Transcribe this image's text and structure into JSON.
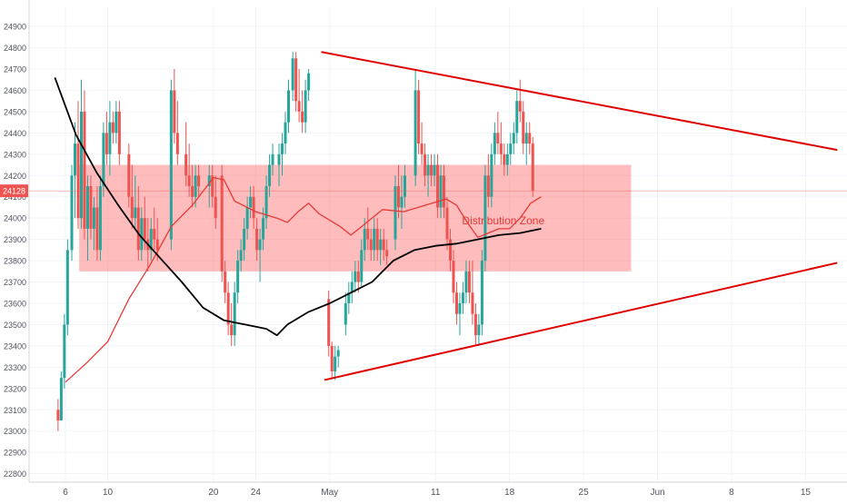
{
  "chart_data": {
    "type": "candlestick",
    "y_ticks": [
      22800,
      22900,
      23000,
      23100,
      23200,
      23300,
      23400,
      23500,
      23600,
      23700,
      23800,
      23900,
      24000,
      24100,
      24200,
      24300,
      24400,
      24500,
      24600,
      24700,
      24800,
      24900
    ],
    "ylim": [
      22760,
      24990
    ],
    "x_tick_labels": [
      {
        "label": "6",
        "day": 6
      },
      {
        "label": "10",
        "day": 10
      },
      {
        "label": "20",
        "day": 20
      },
      {
        "label": "24",
        "day": 24
      },
      {
        "label": "May",
        "day": 31
      },
      {
        "label": "11",
        "day": 41
      },
      {
        "label": "18",
        "day": 48
      },
      {
        "label": "25",
        "day": 55
      },
      {
        "label": "Jun",
        "day": 62
      },
      {
        "label": "8",
        "day": 69
      },
      {
        "label": "15",
        "day": 76
      }
    ],
    "last_price": {
      "label": "24128",
      "value": 24128,
      "color": "#ef5350"
    },
    "zone": {
      "label": "Distribution Zone",
      "low": 23750,
      "high": 24250,
      "day_start": 7.3,
      "day_end": 59.5,
      "color": "#ff6b6b"
    },
    "trendlines": [
      {
        "name": "upper",
        "from": [
          30.2,
          24780
        ],
        "to": [
          79,
          24320
        ],
        "color": "#e00000"
      },
      {
        "name": "lower",
        "from": [
          30.5,
          23240
        ],
        "to": [
          79,
          23790
        ],
        "color": "#e00000"
      }
    ],
    "moving_averages": [
      {
        "color": "#e53935",
        "points": [
          [
            6,
            23230
          ],
          [
            8,
            23320
          ],
          [
            10,
            23420
          ],
          [
            12,
            23620
          ],
          [
            14,
            23780
          ],
          [
            16,
            23960
          ],
          [
            18,
            24060
          ],
          [
            20,
            24190
          ],
          [
            21,
            24180
          ],
          [
            22,
            24080
          ],
          [
            24,
            24030
          ],
          [
            26,
            24000
          ],
          [
            27,
            23980
          ],
          [
            28,
            24030
          ],
          [
            29,
            24070
          ],
          [
            30,
            24020
          ],
          [
            32,
            23960
          ],
          [
            33,
            23920
          ],
          [
            34,
            23960
          ],
          [
            36,
            24040
          ],
          [
            38,
            24030
          ],
          [
            40,
            24060
          ],
          [
            42,
            24090
          ],
          [
            43,
            24060
          ],
          [
            44,
            23980
          ],
          [
            45,
            23910
          ],
          [
            46,
            23930
          ],
          [
            47,
            23950
          ],
          [
            48,
            23950
          ],
          [
            49,
            24000
          ],
          [
            50,
            24070
          ],
          [
            51,
            24100
          ]
        ]
      },
      {
        "color": "#000000",
        "points": [
          [
            5,
            24660
          ],
          [
            7,
            24390
          ],
          [
            9,
            24210
          ],
          [
            11,
            24060
          ],
          [
            13,
            23920
          ],
          [
            15,
            23810
          ],
          [
            17,
            23700
          ],
          [
            19,
            23580
          ],
          [
            21,
            23520
          ],
          [
            23,
            23500
          ],
          [
            25,
            23480
          ],
          [
            26,
            23450
          ],
          [
            27,
            23500
          ],
          [
            29,
            23560
          ],
          [
            31,
            23600
          ],
          [
            33,
            23650
          ],
          [
            35,
            23700
          ],
          [
            37,
            23800
          ],
          [
            39,
            23850
          ],
          [
            41,
            23870
          ],
          [
            43,
            23880
          ],
          [
            45,
            23900
          ],
          [
            47,
            23920
          ],
          [
            49,
            23930
          ],
          [
            51,
            23950
          ]
        ]
      }
    ],
    "candles": [
      [
        5.3,
        23100,
        23150,
        23000,
        23050
      ],
      [
        5.6,
        23050,
        23280,
        23050,
        23250
      ],
      [
        5.9,
        23250,
        23550,
        23200,
        23500
      ],
      [
        6.2,
        23500,
        23900,
        23450,
        23850
      ],
      [
        6.6,
        23850,
        24250,
        23800,
        24200
      ],
      [
        6.9,
        24200,
        24450,
        24000,
        24350
      ],
      [
        7.2,
        24350,
        24550,
        23950,
        24000
      ],
      [
        7.5,
        24000,
        24650,
        23950,
        24500
      ],
      [
        7.8,
        24500,
        24600,
        23900,
        23950
      ],
      [
        8.1,
        23950,
        24200,
        23800,
        24150
      ],
      [
        8.4,
        24150,
        24200,
        23900,
        23950
      ],
      [
        8.7,
        23950,
        24100,
        23850,
        24050
      ],
      [
        9.0,
        24050,
        24150,
        23800,
        23850
      ],
      [
        9.3,
        23850,
        24200,
        23800,
        24150
      ],
      [
        9.6,
        24150,
        24450,
        24100,
        24400
      ],
      [
        9.9,
        24400,
        24500,
        24250,
        24300
      ],
      [
        10.2,
        24300,
        24550,
        24200,
        24450
      ],
      [
        10.5,
        24450,
        24500,
        24350,
        24400
      ],
      [
        10.8,
        24400,
        24550,
        24350,
        24500
      ],
      [
        11.1,
        24500,
        24550,
        24250,
        24300
      ],
      [
        12.0,
        24300,
        24350,
        24050,
        24100
      ],
      [
        12.3,
        24100,
        24250,
        23950,
        24000
      ],
      [
        12.6,
        24000,
        24200,
        23950,
        24050
      ],
      [
        12.9,
        24050,
        24150,
        23800,
        23850
      ],
      [
        13.2,
        23850,
        24050,
        23800,
        24000
      ],
      [
        13.5,
        24000,
        24100,
        23850,
        23900
      ],
      [
        13.8,
        23900,
        24000,
        23750,
        23850
      ],
      [
        14.1,
        23850,
        24000,
        23800,
        23950
      ],
      [
        14.4,
        23950,
        24050,
        23850,
        23900
      ],
      [
        14.7,
        23900,
        24000,
        23800,
        23850
      ],
      [
        16.0,
        23900,
        24650,
        23850,
        24600
      ],
      [
        16.3,
        24600,
        24700,
        24350,
        24400
      ],
      [
        16.6,
        24400,
        24550,
        24250,
        24300
      ],
      [
        17.4,
        24300,
        24450,
        24150,
        24200
      ],
      [
        17.7,
        24200,
        24350,
        24100,
        24150
      ],
      [
        18.0,
        24150,
        24250,
        24050,
        24100
      ],
      [
        18.3,
        24100,
        24250,
        24050,
        24200
      ],
      [
        18.6,
        24200,
        24250,
        24100,
        24150
      ],
      [
        19.6,
        24150,
        24250,
        24050,
        24200
      ],
      [
        19.9,
        24200,
        24250,
        24050,
        24100
      ],
      [
        20.2,
        24100,
        24200,
        23950,
        24000
      ],
      [
        20.8,
        24200,
        24250,
        23700,
        23750
      ],
      [
        21.1,
        23750,
        23800,
        23600,
        23650
      ],
      [
        21.4,
        23650,
        23700,
        23450,
        23500
      ],
      [
        21.7,
        23500,
        23600,
        23400,
        23450
      ],
      [
        22.0,
        23450,
        23700,
        23400,
        23650
      ],
      [
        22.3,
        23650,
        23850,
        23600,
        23800
      ],
      [
        22.6,
        23800,
        23900,
        23750,
        23850
      ],
      [
        22.9,
        23850,
        24000,
        23800,
        23950
      ],
      [
        23.2,
        23950,
        24100,
        23900,
        24050
      ],
      [
        23.5,
        24050,
        24150,
        24000,
        24100
      ],
      [
        23.8,
        24100,
        24150,
        23950,
        24000
      ],
      [
        24.1,
        23950,
        24000,
        23800,
        23850
      ],
      [
        24.4,
        23850,
        23950,
        23700,
        23900
      ],
      [
        24.7,
        23900,
        24050,
        23850,
        24000
      ],
      [
        25.0,
        24000,
        24200,
        23950,
        24150
      ],
      [
        25.3,
        24150,
        24300,
        24100,
        24250
      ],
      [
        25.6,
        24250,
        24350,
        24200,
        24300
      ],
      [
        26.2,
        24250,
        24350,
        24150,
        24300
      ],
      [
        26.5,
        24300,
        24400,
        24200,
        24350
      ],
      [
        26.8,
        24350,
        24500,
        24300,
        24450
      ],
      [
        27.1,
        24450,
        24650,
        24400,
        24600
      ],
      [
        27.5,
        24600,
        24780,
        24550,
        24750
      ],
      [
        27.8,
        24750,
        24780,
        24500,
        24550
      ],
      [
        28.1,
        24550,
        24700,
        24450,
        24500
      ],
      [
        28.4,
        24500,
        24600,
        24400,
        24450
      ],
      [
        28.7,
        24450,
        24650,
        24400,
        24600
      ],
      [
        29.0,
        24600,
        24700,
        24550,
        24680
      ],
      [
        30.9,
        23620,
        23660,
        23350,
        23400
      ],
      [
        31.2,
        23400,
        23420,
        23250,
        23280
      ],
      [
        31.5,
        23280,
        23400,
        23240,
        23350
      ],
      [
        31.8,
        23350,
        23400,
        23300,
        23380
      ],
      [
        32.5,
        23500,
        23650,
        23450,
        23600
      ],
      [
        32.8,
        23600,
        23700,
        23550,
        23650
      ],
      [
        33.1,
        23650,
        23750,
        23600,
        23700
      ],
      [
        33.4,
        23700,
        23800,
        23650,
        23750
      ],
      [
        33.7,
        23750,
        23800,
        23650,
        23700
      ],
      [
        34.0,
        23700,
        23900,
        23680,
        23850
      ],
      [
        34.3,
        23850,
        24000,
        23800,
        23950
      ],
      [
        34.6,
        23950,
        24050,
        23850,
        23900
      ],
      [
        34.9,
        23900,
        23950,
        23800,
        23850
      ],
      [
        35.2,
        23850,
        24000,
        23800,
        23950
      ],
      [
        35.5,
        23950,
        24000,
        23800,
        23850
      ],
      [
        35.8,
        23850,
        23950,
        23780,
        23900
      ],
      [
        36.1,
        23900,
        23950,
        23800,
        23850
      ],
      [
        36.4,
        23850,
        23900,
        23780,
        23820
      ],
      [
        37.2,
        23900,
        24200,
        23850,
        24150
      ],
      [
        37.5,
        24150,
        24250,
        24000,
        24050
      ],
      [
        37.8,
        24050,
        24200,
        23950,
        24100
      ],
      [
        38.1,
        24100,
        24250,
        24050,
        24200
      ],
      [
        39.1,
        24200,
        24700,
        24150,
        24600
      ],
      [
        39.4,
        24600,
        24650,
        24300,
        24350
      ],
      [
        39.7,
        24350,
        24450,
        24250,
        24300
      ],
      [
        40.0,
        24300,
        24350,
        24150,
        24200
      ],
      [
        40.3,
        24200,
        24300,
        24100,
        24250
      ],
      [
        40.6,
        24250,
        24300,
        24150,
        24200
      ],
      [
        40.9,
        24200,
        24300,
        24150,
        24250
      ],
      [
        41.2,
        24250,
        24300,
        24000,
        24050
      ],
      [
        41.5,
        24050,
        24250,
        24000,
        24200
      ],
      [
        41.8,
        24200,
        24250,
        24000,
        24050
      ],
      [
        42.1,
        24050,
        24100,
        23850,
        23900
      ],
      [
        42.4,
        23900,
        23950,
        23750,
        23800
      ],
      [
        42.7,
        23800,
        23850,
        23600,
        23650
      ],
      [
        43.0,
        23650,
        23700,
        23500,
        23550
      ],
      [
        43.3,
        23550,
        23650,
        23450,
        23600
      ],
      [
        43.6,
        23600,
        23700,
        23550,
        23650
      ],
      [
        43.9,
        23650,
        23800,
        23600,
        23750
      ],
      [
        44.2,
        23750,
        23800,
        23600,
        23650
      ],
      [
        44.5,
        23650,
        23800,
        23500,
        23550
      ],
      [
        44.8,
        23550,
        23600,
        23400,
        23450
      ],
      [
        45.1,
        23450,
        23550,
        23400,
        23500
      ],
      [
        45.4,
        23500,
        23850,
        23450,
        23800
      ],
      [
        45.7,
        23800,
        24250,
        23750,
        24200
      ],
      [
        46.0,
        24200,
        24300,
        24050,
        24100
      ],
      [
        46.3,
        24100,
        24350,
        24050,
        24300
      ],
      [
        46.6,
        24300,
        24450,
        24250,
        24400
      ],
      [
        46.9,
        24400,
        24500,
        24300,
        24350
      ],
      [
        47.2,
        24350,
        24450,
        24250,
        24300
      ],
      [
        47.5,
        24300,
        24350,
        24200,
        24250
      ],
      [
        47.8,
        24250,
        24350,
        24200,
        24300
      ],
      [
        48.1,
        24300,
        24400,
        24250,
        24350
      ],
      [
        48.4,
        24350,
        24450,
        24300,
        24400
      ],
      [
        48.7,
        24400,
        24600,
        24350,
        24550
      ],
      [
        49.0,
        24550,
        24650,
        24450,
        24500
      ],
      [
        49.3,
        24500,
        24550,
        24300,
        24350
      ],
      [
        49.6,
        24350,
        24450,
        24250,
        24400
      ],
      [
        49.9,
        24400,
        24450,
        24300,
        24350
      ],
      [
        50.2,
        24350,
        24380,
        24100,
        24128
      ]
    ]
  }
}
